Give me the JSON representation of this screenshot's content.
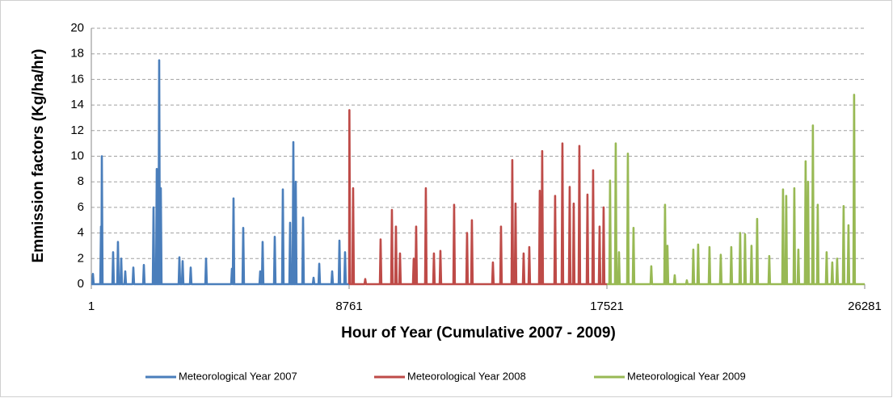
{
  "chart_data": {
    "type": "line",
    "x_label": "Hour of Year (Cumulative 2007 - 2009)",
    "y_label": "Emmission factors (Kg/ha/hr)",
    "xlim": [
      1,
      26281
    ],
    "xticks": [
      1,
      8761,
      17521,
      26281
    ],
    "ylim": [
      0,
      20
    ],
    "yticks": [
      0,
      2,
      4,
      6,
      8,
      10,
      12,
      14,
      16,
      18,
      20
    ],
    "grid": true,
    "legend": "bottom",
    "series": [
      {
        "name": "Meteorological Year 2007",
        "color": "#4a7ebb",
        "x": [
          1,
          31,
          56,
          81,
          305,
          330,
          344,
          358,
          383,
          717,
          742,
          767,
          881,
          906,
          931,
          992,
          1017,
          1042,
          1129,
          1154,
          1179,
          1404,
          1429,
          1454,
          1761,
          1786,
          1811,
          2090,
          2115,
          2140,
          2200,
          2225,
          2250,
          2282,
          2307,
          2332,
          2337,
          2362,
          2387,
          2969,
          2994,
          3019,
          3079,
          3104,
          3129,
          3353,
          3378,
          3403,
          3875,
          3900,
          3925,
          4754,
          4779,
          4804,
          4808,
          4833,
          4858,
          5138,
          5163,
          5188,
          5715,
          5740,
          5765,
          5797,
          5822,
          5847,
          6209,
          6234,
          6259,
          6484,
          6509,
          6534,
          6731,
          6756,
          6781,
          6841,
          6866,
          6891,
          6923,
          6948,
          6973,
          7171,
          7196,
          7221,
          7528,
          7553,
          7578,
          7721,
          7746,
          7771,
          8160,
          8185,
          8210,
          8407,
          8432,
          8457,
          8598,
          8623,
          8648,
          8760
        ],
        "values": [
          0,
          0,
          0.8,
          0,
          0,
          4.5,
          0,
          10,
          0,
          0,
          2.5,
          0,
          0,
          3.3,
          0,
          0,
          2,
          0,
          0,
          1,
          0,
          0,
          1.3,
          0,
          0,
          1.5,
          0,
          0,
          6,
          0,
          0,
          9,
          0,
          0,
          17.5,
          0,
          0,
          7.5,
          0,
          0,
          2.1,
          0,
          0,
          1.8,
          0,
          0,
          1.3,
          0,
          0,
          2,
          0,
          0,
          1.2,
          0,
          0,
          6.7,
          0,
          0,
          4.4,
          0,
          0,
          1,
          0,
          0,
          3.3,
          0,
          0,
          3.7,
          0,
          0,
          7.4,
          0,
          0,
          4.8,
          0,
          0,
          11.1,
          0,
          0,
          8,
          0,
          0,
          5.2,
          0,
          0,
          0.5,
          0,
          0,
          1.6,
          0,
          0,
          1,
          0,
          0,
          3.4,
          0,
          0,
          2.5,
          0,
          0
        ]
      },
      {
        "name": "Meteorological Year 2008",
        "color": "#be4b48",
        "x": [
          8761,
          8770,
          8795,
          8872,
          8897,
          8922,
          9284,
          9309,
          9334,
          9806,
          9831,
          9856,
          10190,
          10215,
          10240,
          10327,
          10352,
          10377,
          10465,
          10490,
          10515,
          10931,
          10956,
          10981,
          11014,
          11039,
          11064,
          11343,
          11368,
          11393,
          11618,
          11643,
          11668,
          11838,
          11863,
          11888,
          12304,
          12329,
          12354,
          12744,
          12769,
          12794,
          12908,
          12933,
          12958,
          13622,
          13647,
          13672,
          13897,
          13922,
          13947,
          14281,
          14306,
          14331,
          14391,
          14416,
          14441,
          14666,
          14691,
          14716,
          14858,
          14883,
          14908,
          15215,
          15240,
          15265,
          15297,
          15322,
          15347,
          15736,
          15761,
          15786,
          15984,
          16009,
          16034,
          16231,
          16256,
          16281,
          16368,
          16393,
          16418,
          16560,
          16585,
          16610,
          16835,
          16860,
          16885,
          17027,
          17052,
          17077,
          17247,
          17272,
          17297,
          17384,
          17409,
          17434,
          17520
        ],
        "values": [
          0,
          13.6,
          0,
          0,
          7.5,
          0,
          0,
          0.4,
          0,
          0,
          3.5,
          0,
          0,
          5.8,
          0,
          0,
          4.5,
          0,
          0,
          2.4,
          0,
          0,
          2,
          0,
          0,
          4.5,
          0,
          0,
          7.5,
          0,
          0,
          2.4,
          0,
          0,
          2.6,
          0,
          0,
          6.2,
          0,
          0,
          4,
          0,
          0,
          5,
          0,
          0,
          1.7,
          0,
          0,
          4.5,
          0,
          0,
          9.7,
          0,
          0,
          6.3,
          0,
          0,
          2.4,
          0,
          0,
          2.9,
          0,
          0,
          7.3,
          0,
          0,
          10.4,
          0,
          0,
          6.9,
          0,
          0,
          11,
          0,
          0,
          7.6,
          0,
          0,
          6.3,
          0,
          0,
          10.8,
          0,
          0,
          7,
          0,
          0,
          8.9,
          0,
          0,
          4.5,
          0,
          0,
          6,
          0,
          0
        ]
      },
      {
        "name": "Meteorological Year 2009",
        "color": "#98b954",
        "x": [
          17521,
          17603,
          17628,
          17653,
          17796,
          17821,
          17846,
          17906,
          17931,
          17956,
          18208,
          18233,
          18258,
          18400,
          18425,
          18450,
          19004,
          19029,
          19054,
          19471,
          19496,
          19521,
          19553,
          19578,
          19603,
          19800,
          19825,
          19850,
          20212,
          20237,
          20262,
          20432,
          20457,
          20482,
          20596,
          20621,
          20646,
          20981,
          21006,
          21031,
          21365,
          21390,
          21415,
          21722,
          21747,
          21772,
          22024,
          22049,
          22074,
          22189,
          22214,
          22239,
          22409,
          22434,
          22459,
          22601,
          22626,
          22651,
          23013,
          23038,
          23063,
          23480,
          23505,
          23530,
          23589,
          23614,
          23639,
          23864,
          23889,
          23914,
          24001,
          24026,
          24051,
          24248,
          24273,
          24298,
          24331,
          24356,
          24381,
          24495,
          24520,
          24545,
          24660,
          24685,
          24710,
          24962,
          24987,
          25012,
          25154,
          25179,
          25204,
          25319,
          25344,
          25369,
          25539,
          25564,
          25589,
          25704,
          25729,
          25754,
          25896,
          25921,
          25946,
          26281
        ],
        "values": [
          0,
          0,
          8.1,
          0,
          0,
          11,
          0,
          0,
          2.5,
          0,
          0,
          10.2,
          0,
          0,
          4.4,
          0,
          0,
          1.4,
          0,
          0,
          6.2,
          0,
          0,
          3,
          0,
          0,
          0.7,
          0,
          0,
          0.3,
          0,
          0,
          2.7,
          0,
          0,
          3.1,
          0,
          0,
          2.9,
          0,
          0,
          2.3,
          0,
          0,
          2.9,
          0,
          0,
          4,
          0,
          0,
          3.9,
          0,
          0,
          3,
          0,
          0,
          5.1,
          0,
          0,
          2.2,
          0,
          0,
          7.4,
          0,
          0,
          6.9,
          0,
          0,
          7.5,
          0,
          0,
          2.7,
          0,
          0,
          9.6,
          0,
          0,
          8,
          0,
          0,
          12.4,
          0,
          0,
          6.2,
          0,
          0,
          2.5,
          0,
          0,
          1.7,
          0,
          0,
          2,
          0,
          0,
          6.1,
          0,
          0,
          4.6,
          0,
          0,
          14.8,
          0,
          0
        ]
      }
    ]
  }
}
